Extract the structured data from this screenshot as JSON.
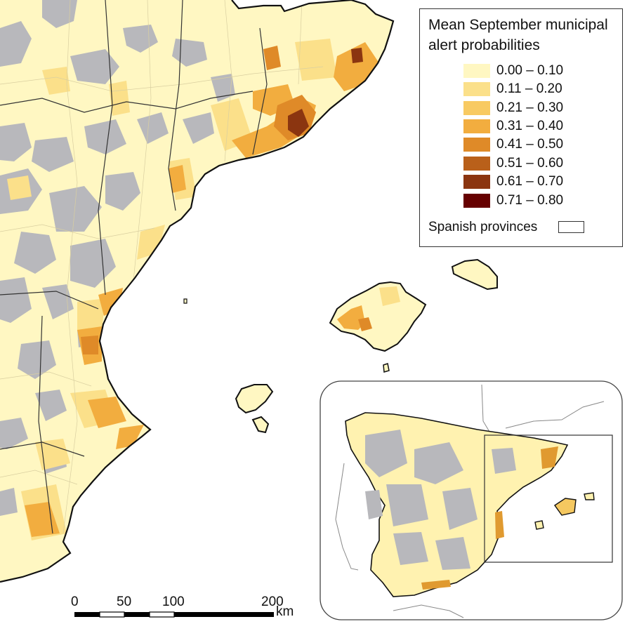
{
  "legend": {
    "title_line1": "Mean September municipal",
    "title_line2": "alert probabilities",
    "classes": [
      {
        "label": "0.00 – 0.10",
        "color": "#fff7c2"
      },
      {
        "label": "0.11 – 0.20",
        "color": "#fbe08a"
      },
      {
        "label": "0.21 – 0.30",
        "color": "#f8ca62"
      },
      {
        "label": "0.31 – 0.40",
        "color": "#f2ad3f"
      },
      {
        "label": "0.41 – 0.50",
        "color": "#df8a28"
      },
      {
        "label": "0.51 – 0.60",
        "color": "#b9601a"
      },
      {
        "label": "0.61 – 0.70",
        "color": "#8b3510"
      },
      {
        "label": "0.71 – 0.80",
        "color": "#660000"
      }
    ],
    "provinces_label": "Spanish provinces"
  },
  "colors": {
    "no_data": "#b8b8bc",
    "boundary": "#2b2b2b",
    "sea": "#ffffff",
    "neighbor_land_outline": "#888888"
  },
  "scale_bar": {
    "labels": [
      "0",
      "50",
      "100",
      "200"
    ],
    "unit": "km"
  }
}
